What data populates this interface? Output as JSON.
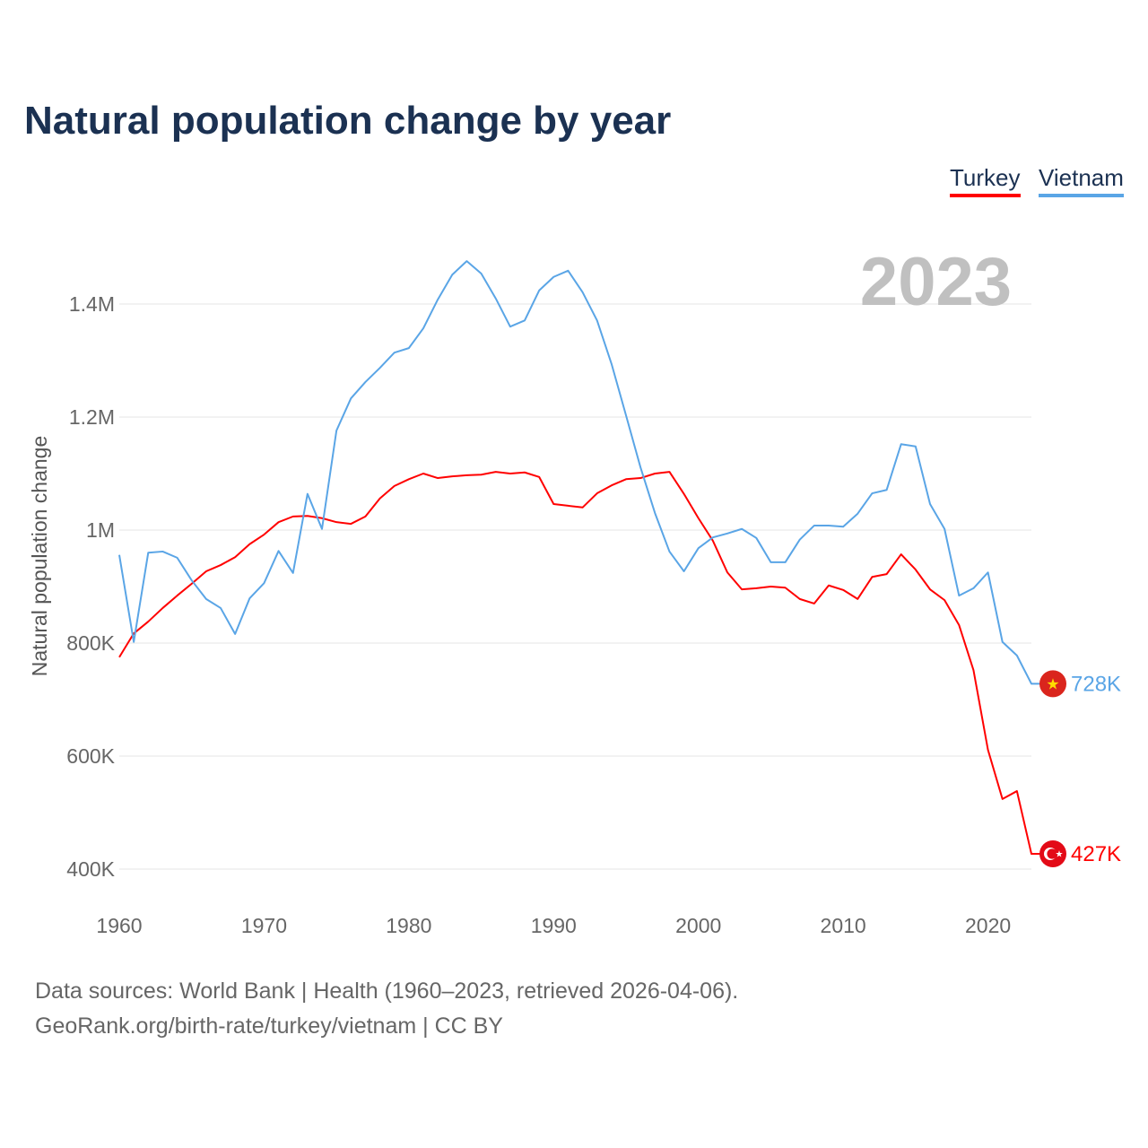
{
  "colors": {
    "Turkey": "#ff0000",
    "Vietnam": "#5aa5e6",
    "title": "#1b3152"
  },
  "chart_data": {
    "type": "line",
    "title": "Natural population change by year",
    "xlabel": "",
    "ylabel": "Natural population change",
    "year_label": "2023",
    "xlim": [
      1960,
      2023
    ],
    "ylim": [
      400000,
      1400000
    ],
    "xticks": [
      1960,
      1970,
      1980,
      1990,
      2000,
      2010,
      2020
    ],
    "yticks": [
      {
        "v": 400000,
        "l": "400K"
      },
      {
        "v": 600000,
        "l": "600K"
      },
      {
        "v": 800000,
        "l": "800K"
      },
      {
        "v": 1000000,
        "l": "1M"
      },
      {
        "v": 1200000,
        "l": "1.2M"
      },
      {
        "v": 1400000,
        "l": "1.4M"
      }
    ],
    "grid": true,
    "legend_position": "top-right",
    "x_start": 1960,
    "series": [
      {
        "name": "Turkey",
        "end_label": "427K",
        "flag": "turkey-flag",
        "values": [
          775,
          817,
          838,
          862,
          884,
          905,
          927,
          938,
          952,
          975,
          992,
          1014,
          1024,
          1025,
          1021,
          1014,
          1011,
          1024,
          1056,
          1078,
          1090,
          1100,
          1092,
          1095,
          1097,
          1098,
          1103,
          1100,
          1102,
          1094,
          1046,
          1043,
          1040,
          1065,
          1079,
          1090,
          1092,
          1100,
          1103,
          1064,
          1021,
          981,
          925,
          895,
          897,
          900,
          898,
          878,
          870,
          902,
          894,
          878,
          917,
          922,
          957,
          930,
          895,
          876,
          832,
          752,
          611,
          524,
          538,
          427
        ]
      },
      {
        "name": "Vietnam",
        "end_label": "728K",
        "flag": "vietnam-flag",
        "values": [
          956,
          802,
          960,
          962,
          951,
          911,
          878,
          862,
          816,
          879,
          906,
          963,
          924,
          1064,
          1002,
          1176,
          1233,
          1262,
          1287,
          1314,
          1322,
          1357,
          1408,
          1452,
          1476,
          1454,
          1410,
          1360,
          1371,
          1424,
          1448,
          1459,
          1421,
          1371,
          1294,
          1203,
          1111,
          1030,
          962,
          927,
          968,
          987,
          994,
          1002,
          986,
          943,
          943,
          983,
          1008,
          1008,
          1006,
          1029,
          1065,
          1071,
          1152,
          1148,
          1046,
          1002,
          884,
          897,
          925,
          802,
          778,
          728
        ]
      }
    ],
    "value_unit": "thousands"
  },
  "footer": {
    "line1": "Data sources: World Bank | Health (1960–2023, retrieved 2026-04-06).",
    "line2": "GeoRank.org/birth-rate/turkey/vietnam | CC BY"
  }
}
